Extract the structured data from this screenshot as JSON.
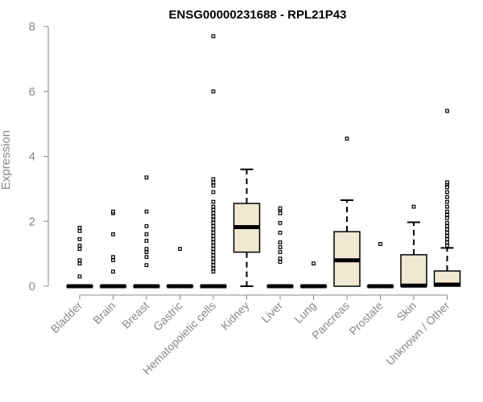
{
  "chart_data": {
    "type": "boxplot",
    "title": "ENSG00000231688 - RPL21P43",
    "xlabel": "",
    "ylabel": "Expression",
    "ylim": [
      0,
      8
    ],
    "yticks": [
      0,
      2,
      4,
      6,
      8
    ],
    "grid": false,
    "legend": "none",
    "colors": {
      "box_fill": "#efe8d2",
      "stroke": "#000000",
      "axis_text": "#888888",
      "axis_line": "#888888"
    },
    "categories": [
      "Bladder",
      "Brain",
      "Breast",
      "Gastric",
      "Hematopoietic cells",
      "Kidney",
      "Liver",
      "Lung",
      "Pancreas",
      "Prostate",
      "Skin",
      "Unknown / Other"
    ],
    "boxes": [
      {
        "category": "Bladder",
        "q1": 0,
        "median": 0,
        "q3": 0,
        "whisker_low": 0,
        "whisker_high": 0,
        "outliers": [
          0.3,
          0.7,
          0.8,
          1.15,
          1.25,
          1.45,
          1.7,
          1.8
        ]
      },
      {
        "category": "Brain",
        "q1": 0,
        "median": 0,
        "q3": 0,
        "whisker_low": 0,
        "whisker_high": 0,
        "outliers": [
          0.45,
          0.8,
          0.9,
          1.6,
          2.25,
          2.3
        ]
      },
      {
        "category": "Breast",
        "q1": 0,
        "median": 0,
        "q3": 0,
        "whisker_low": 0,
        "whisker_high": 0,
        "outliers": [
          0.65,
          0.9,
          1.05,
          1.15,
          1.4,
          1.6,
          1.85,
          2.3,
          3.35
        ]
      },
      {
        "category": "Gastric",
        "q1": 0,
        "median": 0,
        "q3": 0,
        "whisker_low": 0,
        "whisker_high": 0,
        "outliers": [
          1.15
        ]
      },
      {
        "category": "Hematopoietic cells",
        "q1": 0,
        "median": 0,
        "q3": 0,
        "whisker_low": 0,
        "whisker_high": 0,
        "outliers": [
          0.45,
          0.55,
          0.65,
          0.75,
          0.85,
          0.95,
          1.05,
          1.15,
          1.25,
          1.35,
          1.45,
          1.55,
          1.65,
          1.75,
          1.85,
          1.95,
          2.05,
          2.15,
          2.25,
          2.35,
          2.45,
          2.6,
          2.9,
          3.1,
          3.2,
          3.3,
          6.0,
          7.7
        ]
      },
      {
        "category": "Kidney",
        "q1": 1.05,
        "median": 1.82,
        "q3": 2.55,
        "whisker_low": 0,
        "whisker_high": 3.6,
        "outliers": []
      },
      {
        "category": "Liver",
        "q1": 0,
        "median": 0,
        "q3": 0,
        "whisker_low": 0,
        "whisker_high": 0,
        "outliers": [
          0.75,
          0.85,
          1.05,
          1.2,
          1.35,
          1.65,
          1.95,
          2.25,
          2.35,
          2.4
        ]
      },
      {
        "category": "Lung",
        "q1": 0,
        "median": 0,
        "q3": 0,
        "whisker_low": 0,
        "whisker_high": 0,
        "outliers": [
          0.7
        ]
      },
      {
        "category": "Pancreas",
        "q1": 0,
        "median": 0.8,
        "q3": 1.68,
        "whisker_low": 0,
        "whisker_high": 2.65,
        "outliers": [
          4.55
        ]
      },
      {
        "category": "Prostate",
        "q1": 0,
        "median": 0,
        "q3": 0,
        "whisker_low": 0,
        "whisker_high": 0,
        "outliers": [
          1.3
        ]
      },
      {
        "category": "Skin",
        "q1": 0,
        "median": 0.02,
        "q3": 0.97,
        "whisker_low": 0,
        "whisker_high": 1.97,
        "outliers": [
          2.45
        ]
      },
      {
        "category": "Unknown / Other",
        "q1": 0,
        "median": 0.05,
        "q3": 0.47,
        "whisker_low": 0,
        "whisker_high": 1.18,
        "outliers": [
          1.25,
          1.35,
          1.45,
          1.55,
          1.65,
          1.75,
          1.85,
          1.95,
          2.1,
          2.2,
          2.3,
          2.45,
          2.6,
          2.75,
          2.9,
          3.05,
          3.15,
          3.2,
          5.4
        ]
      }
    ]
  }
}
